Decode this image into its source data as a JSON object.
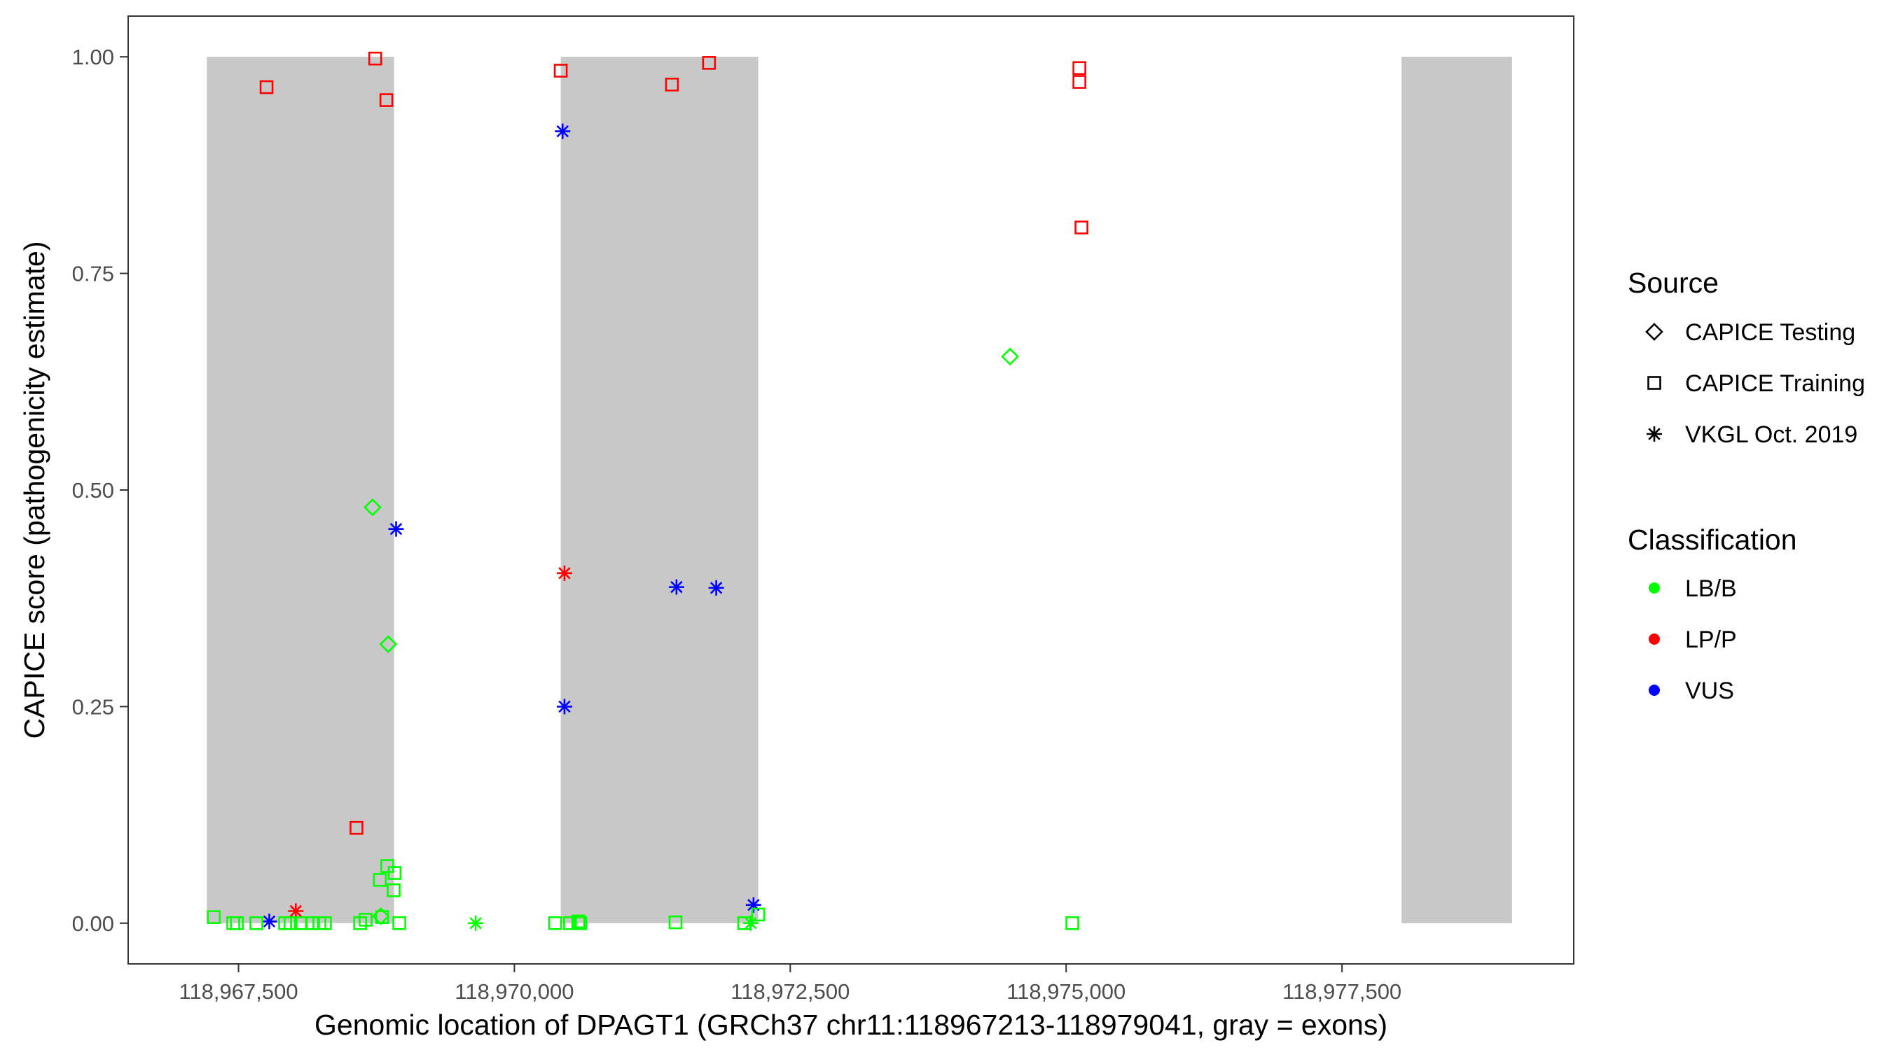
{
  "colors": {
    "LB/B": "#00ff00",
    "LP/P": "#ff0000",
    "VUS": "#0000ff",
    "exon": "#c8c8c8",
    "axis": "#333333"
  },
  "legend": {
    "source_title": "Source",
    "source_items": [
      {
        "label": "CAPICE Testing",
        "shape": "diamond"
      },
      {
        "label": "CAPICE Training",
        "shape": "square"
      },
      {
        "label": "VKGL Oct. 2019",
        "shape": "asterisk"
      }
    ],
    "class_title": "Classification",
    "class_items": [
      {
        "label": "LB/B",
        "shape": "dot"
      },
      {
        "label": "LP/P",
        "shape": "dot"
      },
      {
        "label": "VUS",
        "shape": "dot"
      }
    ]
  },
  "chart_data": {
    "type": "scatter",
    "xlabel": "Genomic location of DPAGT1 (GRCh37 chr11:118967213-118979041, gray = exons)",
    "ylabel": "CAPICE score (pathogenicity estimate)",
    "xlim": [
      118966500,
      118979600
    ],
    "ylim": [
      -0.047,
      1.047
    ],
    "xticks": [
      118967500,
      118970000,
      118972500,
      118975000,
      118977500
    ],
    "xtick_labels": [
      "118,967,500",
      "118,970,000",
      "118,972,500",
      "118,975,000",
      "118,977,500"
    ],
    "yticks": [
      0,
      0.25,
      0.5,
      0.75,
      1.0
    ],
    "ytick_labels": [
      "0.00",
      "0.25",
      "0.50",
      "0.75",
      "1.00"
    ],
    "grid": false,
    "legend_position": "right",
    "exons": [
      {
        "start": 118967213,
        "end": 118968910
      },
      {
        "start": 118970420,
        "end": 118972210
      },
      {
        "start": 118978040,
        "end": 118979041
      }
    ],
    "points": [
      {
        "x": 118967754,
        "y": 0.965,
        "source": "CAPICE Training",
        "class": "LP/P"
      },
      {
        "x": 118968739,
        "y": 0.998,
        "source": "CAPICE Training",
        "class": "LP/P"
      },
      {
        "x": 118968840,
        "y": 0.95,
        "source": "CAPICE Training",
        "class": "LP/P"
      },
      {
        "x": 118968569,
        "y": 0.11,
        "source": "CAPICE Training",
        "class": "LP/P"
      },
      {
        "x": 118970420,
        "y": 0.984,
        "source": "CAPICE Training",
        "class": "LP/P"
      },
      {
        "x": 118971764,
        "y": 0.993,
        "source": "CAPICE Training",
        "class": "LP/P"
      },
      {
        "x": 118971428,
        "y": 0.968,
        "source": "CAPICE Training",
        "class": "LP/P"
      },
      {
        "x": 118975120,
        "y": 0.987,
        "source": "CAPICE Training",
        "class": "LP/P"
      },
      {
        "x": 118975120,
        "y": 0.971,
        "source": "CAPICE Training",
        "class": "LP/P"
      },
      {
        "x": 118975139,
        "y": 0.803,
        "source": "CAPICE Training",
        "class": "LP/P"
      },
      {
        "x": 118970437,
        "y": 0.914,
        "source": "VKGL Oct. 2019",
        "class": "VUS"
      },
      {
        "x": 118968928,
        "y": 0.455,
        "source": "VKGL Oct. 2019",
        "class": "VUS"
      },
      {
        "x": 118971829,
        "y": 0.387,
        "source": "VKGL Oct. 2019",
        "class": "VUS"
      },
      {
        "x": 118970454,
        "y": 0.25,
        "source": "VKGL Oct. 2019",
        "class": "VUS"
      },
      {
        "x": 118971469,
        "y": 0.388,
        "source": "VKGL Oct. 2019",
        "class": "VUS"
      },
      {
        "x": 118972167,
        "y": 0.021,
        "source": "VKGL Oct. 2019",
        "class": "VUS"
      },
      {
        "x": 118967779,
        "y": 0.002,
        "source": "VKGL Oct. 2019",
        "class": "VUS"
      },
      {
        "x": 118970454,
        "y": 0.404,
        "source": "VKGL Oct. 2019",
        "class": "LP/P"
      },
      {
        "x": 118968019,
        "y": 0.014,
        "source": "VKGL Oct. 2019",
        "class": "LP/P"
      },
      {
        "x": 118969649,
        "y": 0.0,
        "source": "VKGL Oct. 2019",
        "class": "LB/B"
      },
      {
        "x": 118972142,
        "y": 0.0,
        "source": "VKGL Oct. 2019",
        "class": "LB/B"
      },
      {
        "x": 118974492,
        "y": 0.654,
        "source": "CAPICE Testing",
        "class": "LB/B"
      },
      {
        "x": 118968715,
        "y": 0.48,
        "source": "CAPICE Testing",
        "class": "LB/B"
      },
      {
        "x": 118968857,
        "y": 0.322,
        "source": "CAPICE Testing",
        "class": "LB/B"
      },
      {
        "x": 118968789,
        "y": 0.008,
        "source": "CAPICE Testing",
        "class": "LB/B"
      },
      {
        "x": 118968848,
        "y": 0.066,
        "source": "CAPICE Training",
        "class": "LB/B"
      },
      {
        "x": 118968915,
        "y": 0.058,
        "source": "CAPICE Training",
        "class": "LB/B"
      },
      {
        "x": 118968781,
        "y": 0.05,
        "source": "CAPICE Training",
        "class": "LB/B"
      },
      {
        "x": 118968906,
        "y": 0.038,
        "source": "CAPICE Training",
        "class": "LB/B"
      },
      {
        "x": 118967276,
        "y": 0.007,
        "source": "CAPICE Training",
        "class": "LB/B"
      },
      {
        "x": 118967452,
        "y": 0.0,
        "source": "CAPICE Training",
        "class": "LB/B"
      },
      {
        "x": 118967486,
        "y": 0.0,
        "source": "CAPICE Training",
        "class": "LB/B"
      },
      {
        "x": 118967662,
        "y": 0.0,
        "source": "CAPICE Training",
        "class": "LB/B"
      },
      {
        "x": 118967922,
        "y": 0.0,
        "source": "CAPICE Training",
        "class": "LB/B"
      },
      {
        "x": 118967972,
        "y": 0.0,
        "source": "CAPICE Training",
        "class": "LB/B"
      },
      {
        "x": 118968065,
        "y": 0.0,
        "source": "CAPICE Training",
        "class": "LB/B"
      },
      {
        "x": 118968166,
        "y": 0.0,
        "source": "CAPICE Training",
        "class": "LB/B"
      },
      {
        "x": 118968233,
        "y": 0.0,
        "source": "CAPICE Training",
        "class": "LB/B"
      },
      {
        "x": 118968283,
        "y": 0.0,
        "source": "CAPICE Training",
        "class": "LB/B"
      },
      {
        "x": 118968602,
        "y": 0.0,
        "source": "CAPICE Training",
        "class": "LB/B"
      },
      {
        "x": 118968652,
        "y": 0.004,
        "source": "CAPICE Training",
        "class": "LB/B"
      },
      {
        "x": 118968802,
        "y": 0.007,
        "source": "CAPICE Training",
        "class": "LB/B"
      },
      {
        "x": 118968957,
        "y": 0.0,
        "source": "CAPICE Training",
        "class": "LB/B"
      },
      {
        "x": 118970370,
        "y": 0.0,
        "source": "CAPICE Training",
        "class": "LB/B"
      },
      {
        "x": 118970504,
        "y": 0.0,
        "source": "CAPICE Training",
        "class": "LB/B"
      },
      {
        "x": 118970580,
        "y": 0.002,
        "source": "CAPICE Training",
        "class": "LB/B"
      },
      {
        "x": 118970597,
        "y": 0.0,
        "source": "CAPICE Training",
        "class": "LB/B"
      },
      {
        "x": 118971460,
        "y": 0.001,
        "source": "CAPICE Training",
        "class": "LB/B"
      },
      {
        "x": 118972083,
        "y": 0.0,
        "source": "CAPICE Training",
        "class": "LB/B"
      },
      {
        "x": 118972209,
        "y": 0.01,
        "source": "CAPICE Training",
        "class": "LB/B"
      },
      {
        "x": 118975056,
        "y": 0.0,
        "source": "CAPICE Training",
        "class": "LB/B"
      }
    ]
  }
}
